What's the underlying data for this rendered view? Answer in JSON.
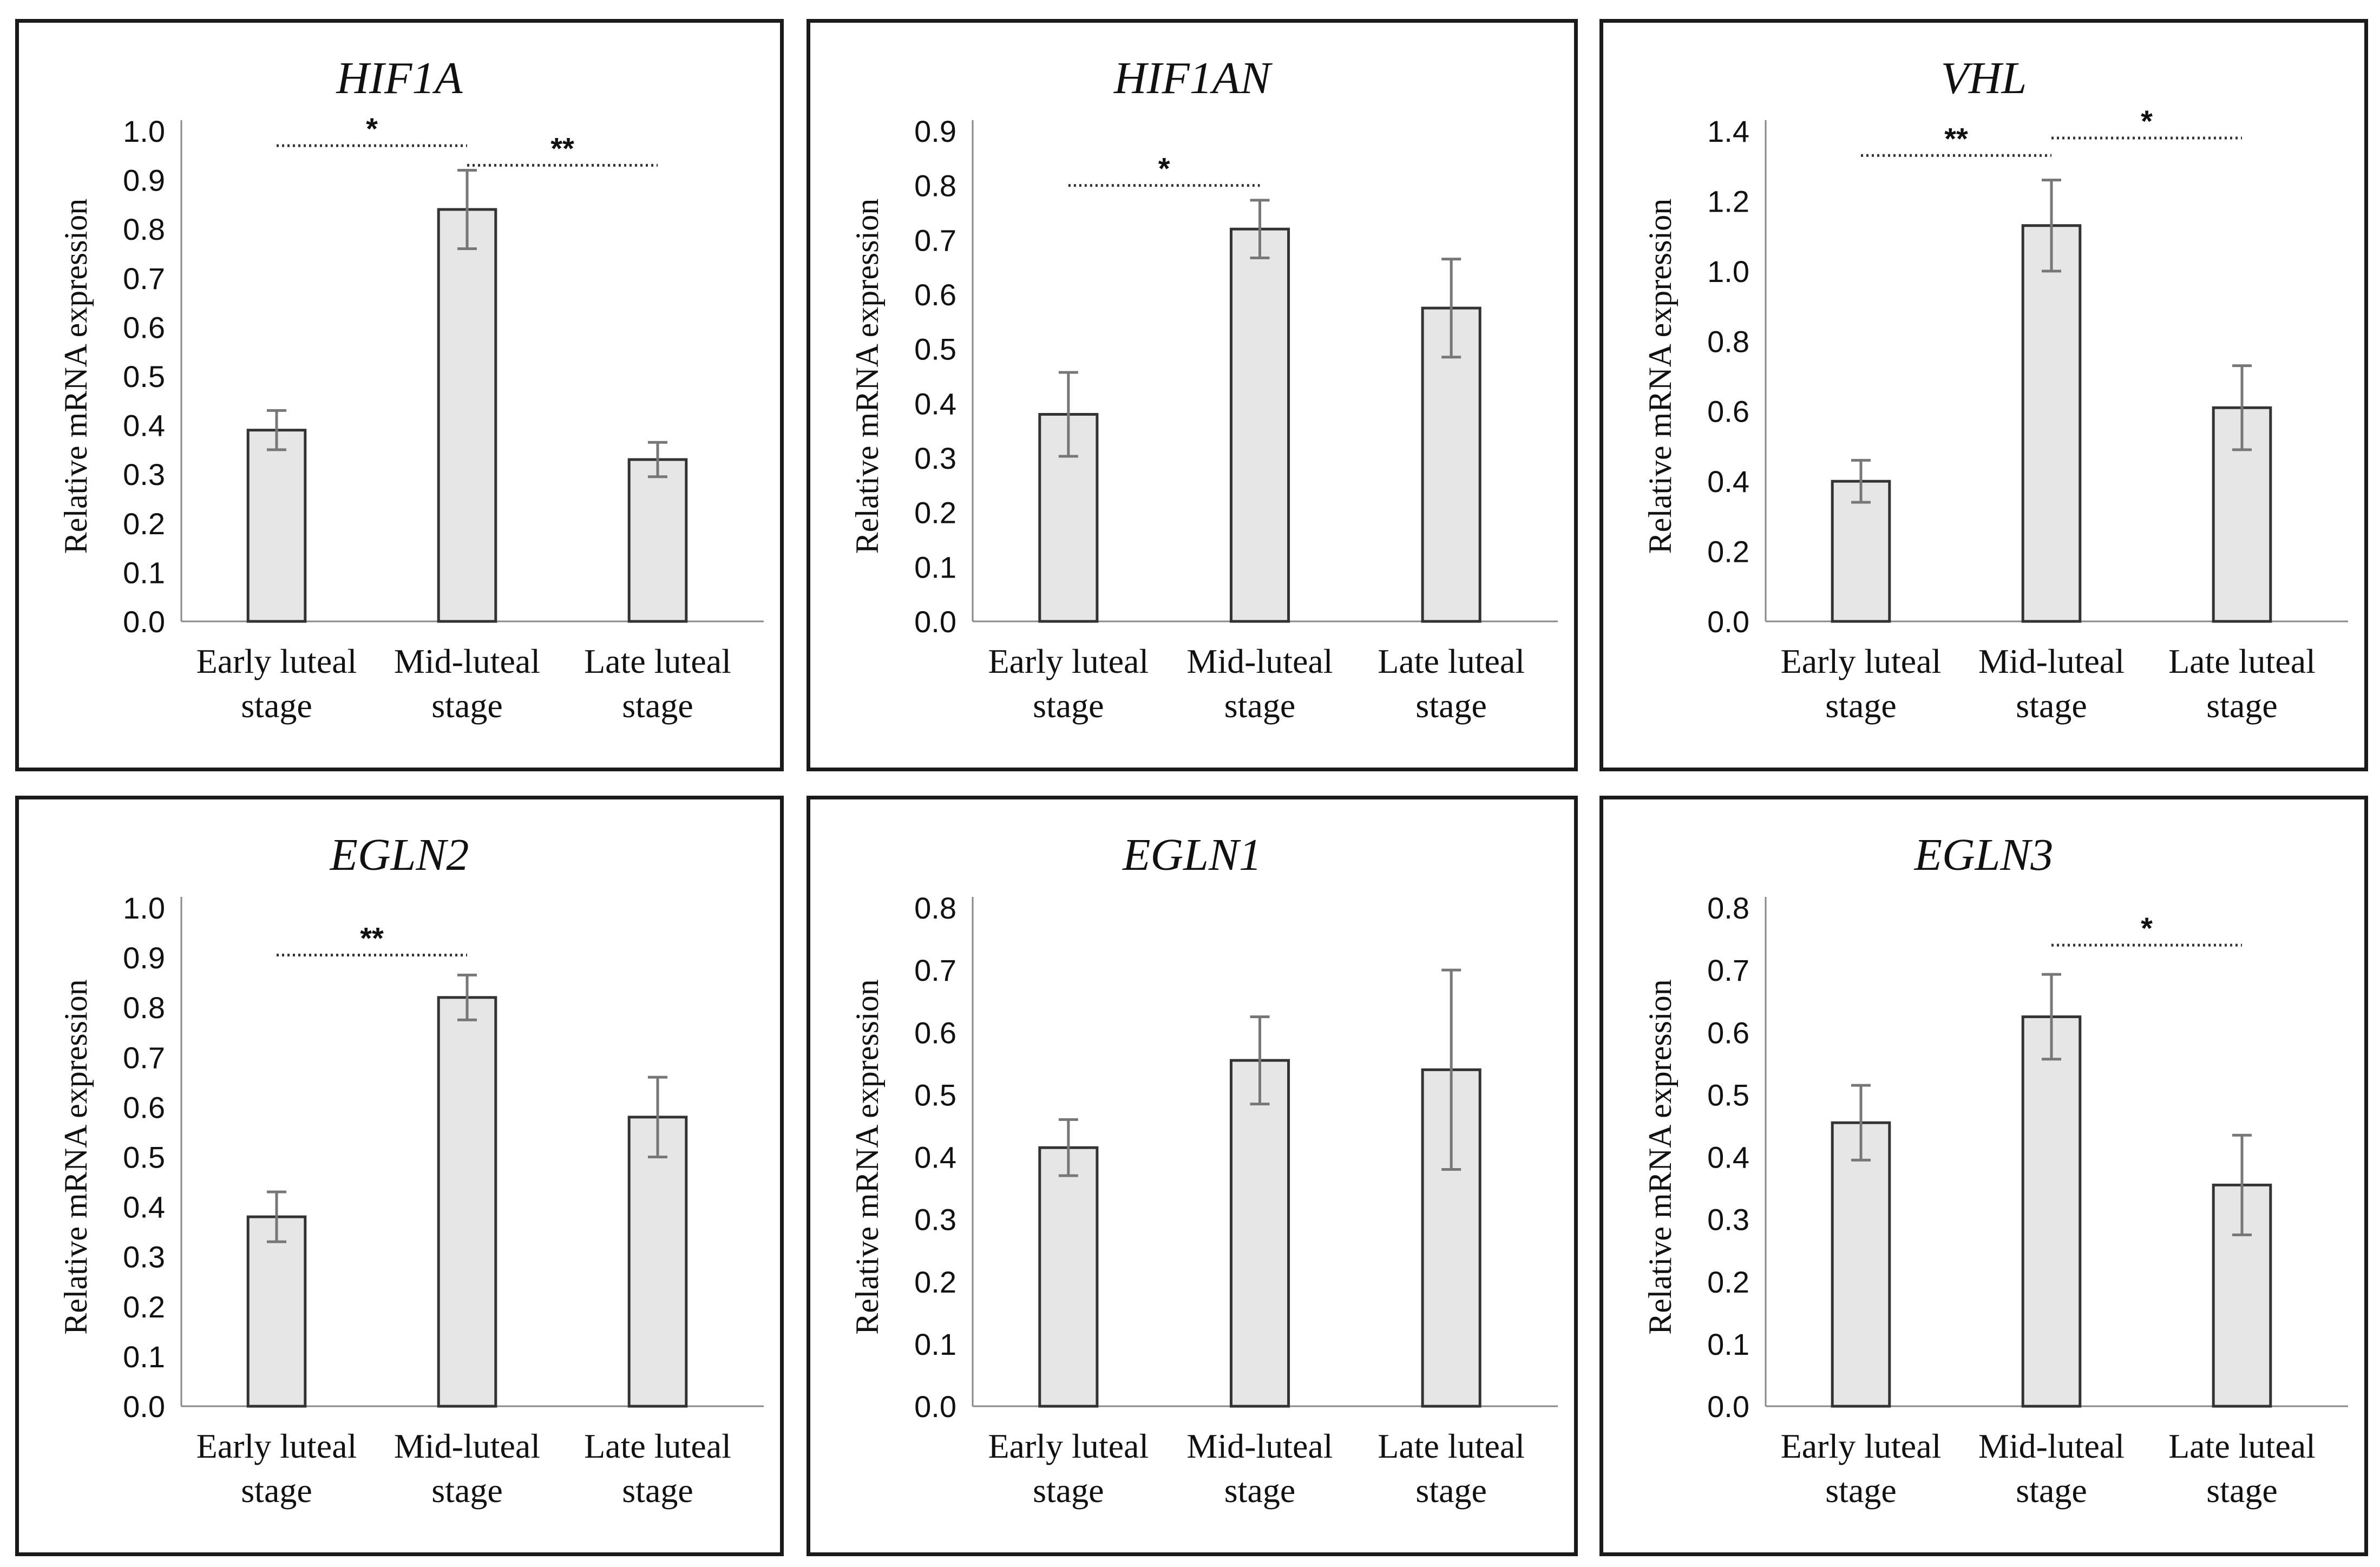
{
  "chart_data": [
    {
      "type": "bar",
      "title": "HIF1A",
      "ylabel": "Relative mRNA expression",
      "xlabel": "",
      "categories": [
        [
          "Early luteal",
          "stage"
        ],
        [
          "Mid-luteal",
          "stage"
        ],
        [
          "Late luteal",
          "stage"
        ]
      ],
      "values": [
        0.39,
        0.84,
        0.33
      ],
      "errors": [
        0.04,
        0.08,
        0.035
      ],
      "ylim": [
        0,
        1.0
      ],
      "yticks": [
        0.0,
        0.1,
        0.2,
        0.3,
        0.4,
        0.5,
        0.6,
        0.7,
        0.8,
        0.9,
        1.0
      ],
      "tick_decimals": 1,
      "significance": [
        {
          "from": 0,
          "to": 1,
          "label": "*",
          "y": 0.97
        },
        {
          "from": 1,
          "to": 2,
          "label": "**",
          "y": 0.93
        }
      ],
      "colors": {
        "bar": "#e6e6e6",
        "error": "#777777",
        "line": "#333333"
      }
    },
    {
      "type": "bar",
      "title": "HIF1AN",
      "ylabel": "Relative mRNA expression",
      "xlabel": "",
      "categories": [
        [
          "Early luteal",
          "stage"
        ],
        [
          "Mid-luteal",
          "stage"
        ],
        [
          "Late luteal",
          "stage"
        ]
      ],
      "values": [
        0.38,
        0.72,
        0.575
      ],
      "errors": [
        0.077,
        0.053,
        0.09
      ],
      "ylim": [
        0,
        0.9
      ],
      "yticks": [
        0.0,
        0.1,
        0.2,
        0.3,
        0.4,
        0.5,
        0.6,
        0.7,
        0.8,
        0.9
      ],
      "tick_decimals": 1,
      "significance": [
        {
          "from": 0,
          "to": 1,
          "label": "*",
          "y": 0.8
        }
      ],
      "colors": {
        "bar": "#e6e6e6",
        "error": "#777777",
        "line": "#333333"
      }
    },
    {
      "type": "bar",
      "title": "VHL",
      "ylabel": "Relative mRNA expression",
      "xlabel": "",
      "categories": [
        [
          "Early luteal",
          "stage"
        ],
        [
          "Mid-luteal",
          "stage"
        ],
        [
          "Late luteal",
          "stage"
        ]
      ],
      "values": [
        0.4,
        1.13,
        0.61
      ],
      "errors": [
        0.06,
        0.13,
        0.12
      ],
      "ylim": [
        0,
        1.4
      ],
      "yticks": [
        0.0,
        0.2,
        0.4,
        0.6,
        0.8,
        1.0,
        1.2,
        1.4
      ],
      "tick_decimals": 1,
      "significance": [
        {
          "from": 0,
          "to": 1,
          "label": "**",
          "y": 1.33
        },
        {
          "from": 1,
          "to": 2,
          "label": "*",
          "y": 1.38
        }
      ],
      "colors": {
        "bar": "#e6e6e6",
        "error": "#777777",
        "line": "#333333"
      }
    },
    {
      "type": "bar",
      "title": "EGLN2",
      "ylabel": "Relative mRNA expression",
      "xlabel": "",
      "categories": [
        [
          "Early luteal",
          "stage"
        ],
        [
          "Mid-luteal",
          "stage"
        ],
        [
          "Late luteal",
          "stage"
        ]
      ],
      "values": [
        0.38,
        0.82,
        0.58
      ],
      "errors": [
        0.05,
        0.045,
        0.08
      ],
      "ylim": [
        0,
        1.0
      ],
      "yticks": [
        0.0,
        0.1,
        0.2,
        0.3,
        0.4,
        0.5,
        0.6,
        0.7,
        0.8,
        0.9,
        1.0
      ],
      "tick_decimals": 1,
      "significance": [
        {
          "from": 0,
          "to": 1,
          "label": "**",
          "y": 0.905
        }
      ],
      "colors": {
        "bar": "#e6e6e6",
        "error": "#777777",
        "line": "#333333"
      }
    },
    {
      "type": "bar",
      "title": "EGLN1",
      "ylabel": "Relative mRNA expression",
      "xlabel": "",
      "categories": [
        [
          "Early luteal",
          "stage"
        ],
        [
          "Mid-luteal",
          "stage"
        ],
        [
          "Late luteal",
          "stage"
        ]
      ],
      "values": [
        0.415,
        0.555,
        0.54
      ],
      "errors": [
        0.045,
        0.07,
        0.16
      ],
      "ylim": [
        0,
        0.8
      ],
      "yticks": [
        0.0,
        0.1,
        0.2,
        0.3,
        0.4,
        0.5,
        0.6,
        0.7,
        0.8
      ],
      "tick_decimals": 1,
      "significance": [],
      "colors": {
        "bar": "#e6e6e6",
        "error": "#777777",
        "line": "#333333"
      }
    },
    {
      "type": "bar",
      "title": "EGLN3",
      "ylabel": "Relative mRNA expression",
      "xlabel": "",
      "categories": [
        [
          "Early luteal",
          "stage"
        ],
        [
          "Mid-luteal",
          "stage"
        ],
        [
          "Late luteal",
          "stage"
        ]
      ],
      "values": [
        0.455,
        0.625,
        0.355
      ],
      "errors": [
        0.06,
        0.068,
        0.08
      ],
      "ylim": [
        0,
        0.8
      ],
      "yticks": [
        0.0,
        0.1,
        0.2,
        0.3,
        0.4,
        0.5,
        0.6,
        0.7,
        0.8
      ],
      "tick_decimals": 1,
      "significance": [
        {
          "from": 1,
          "to": 2,
          "label": "*",
          "y": 0.74
        }
      ],
      "colors": {
        "bar": "#e6e6e6",
        "error": "#777777",
        "line": "#333333"
      }
    }
  ]
}
